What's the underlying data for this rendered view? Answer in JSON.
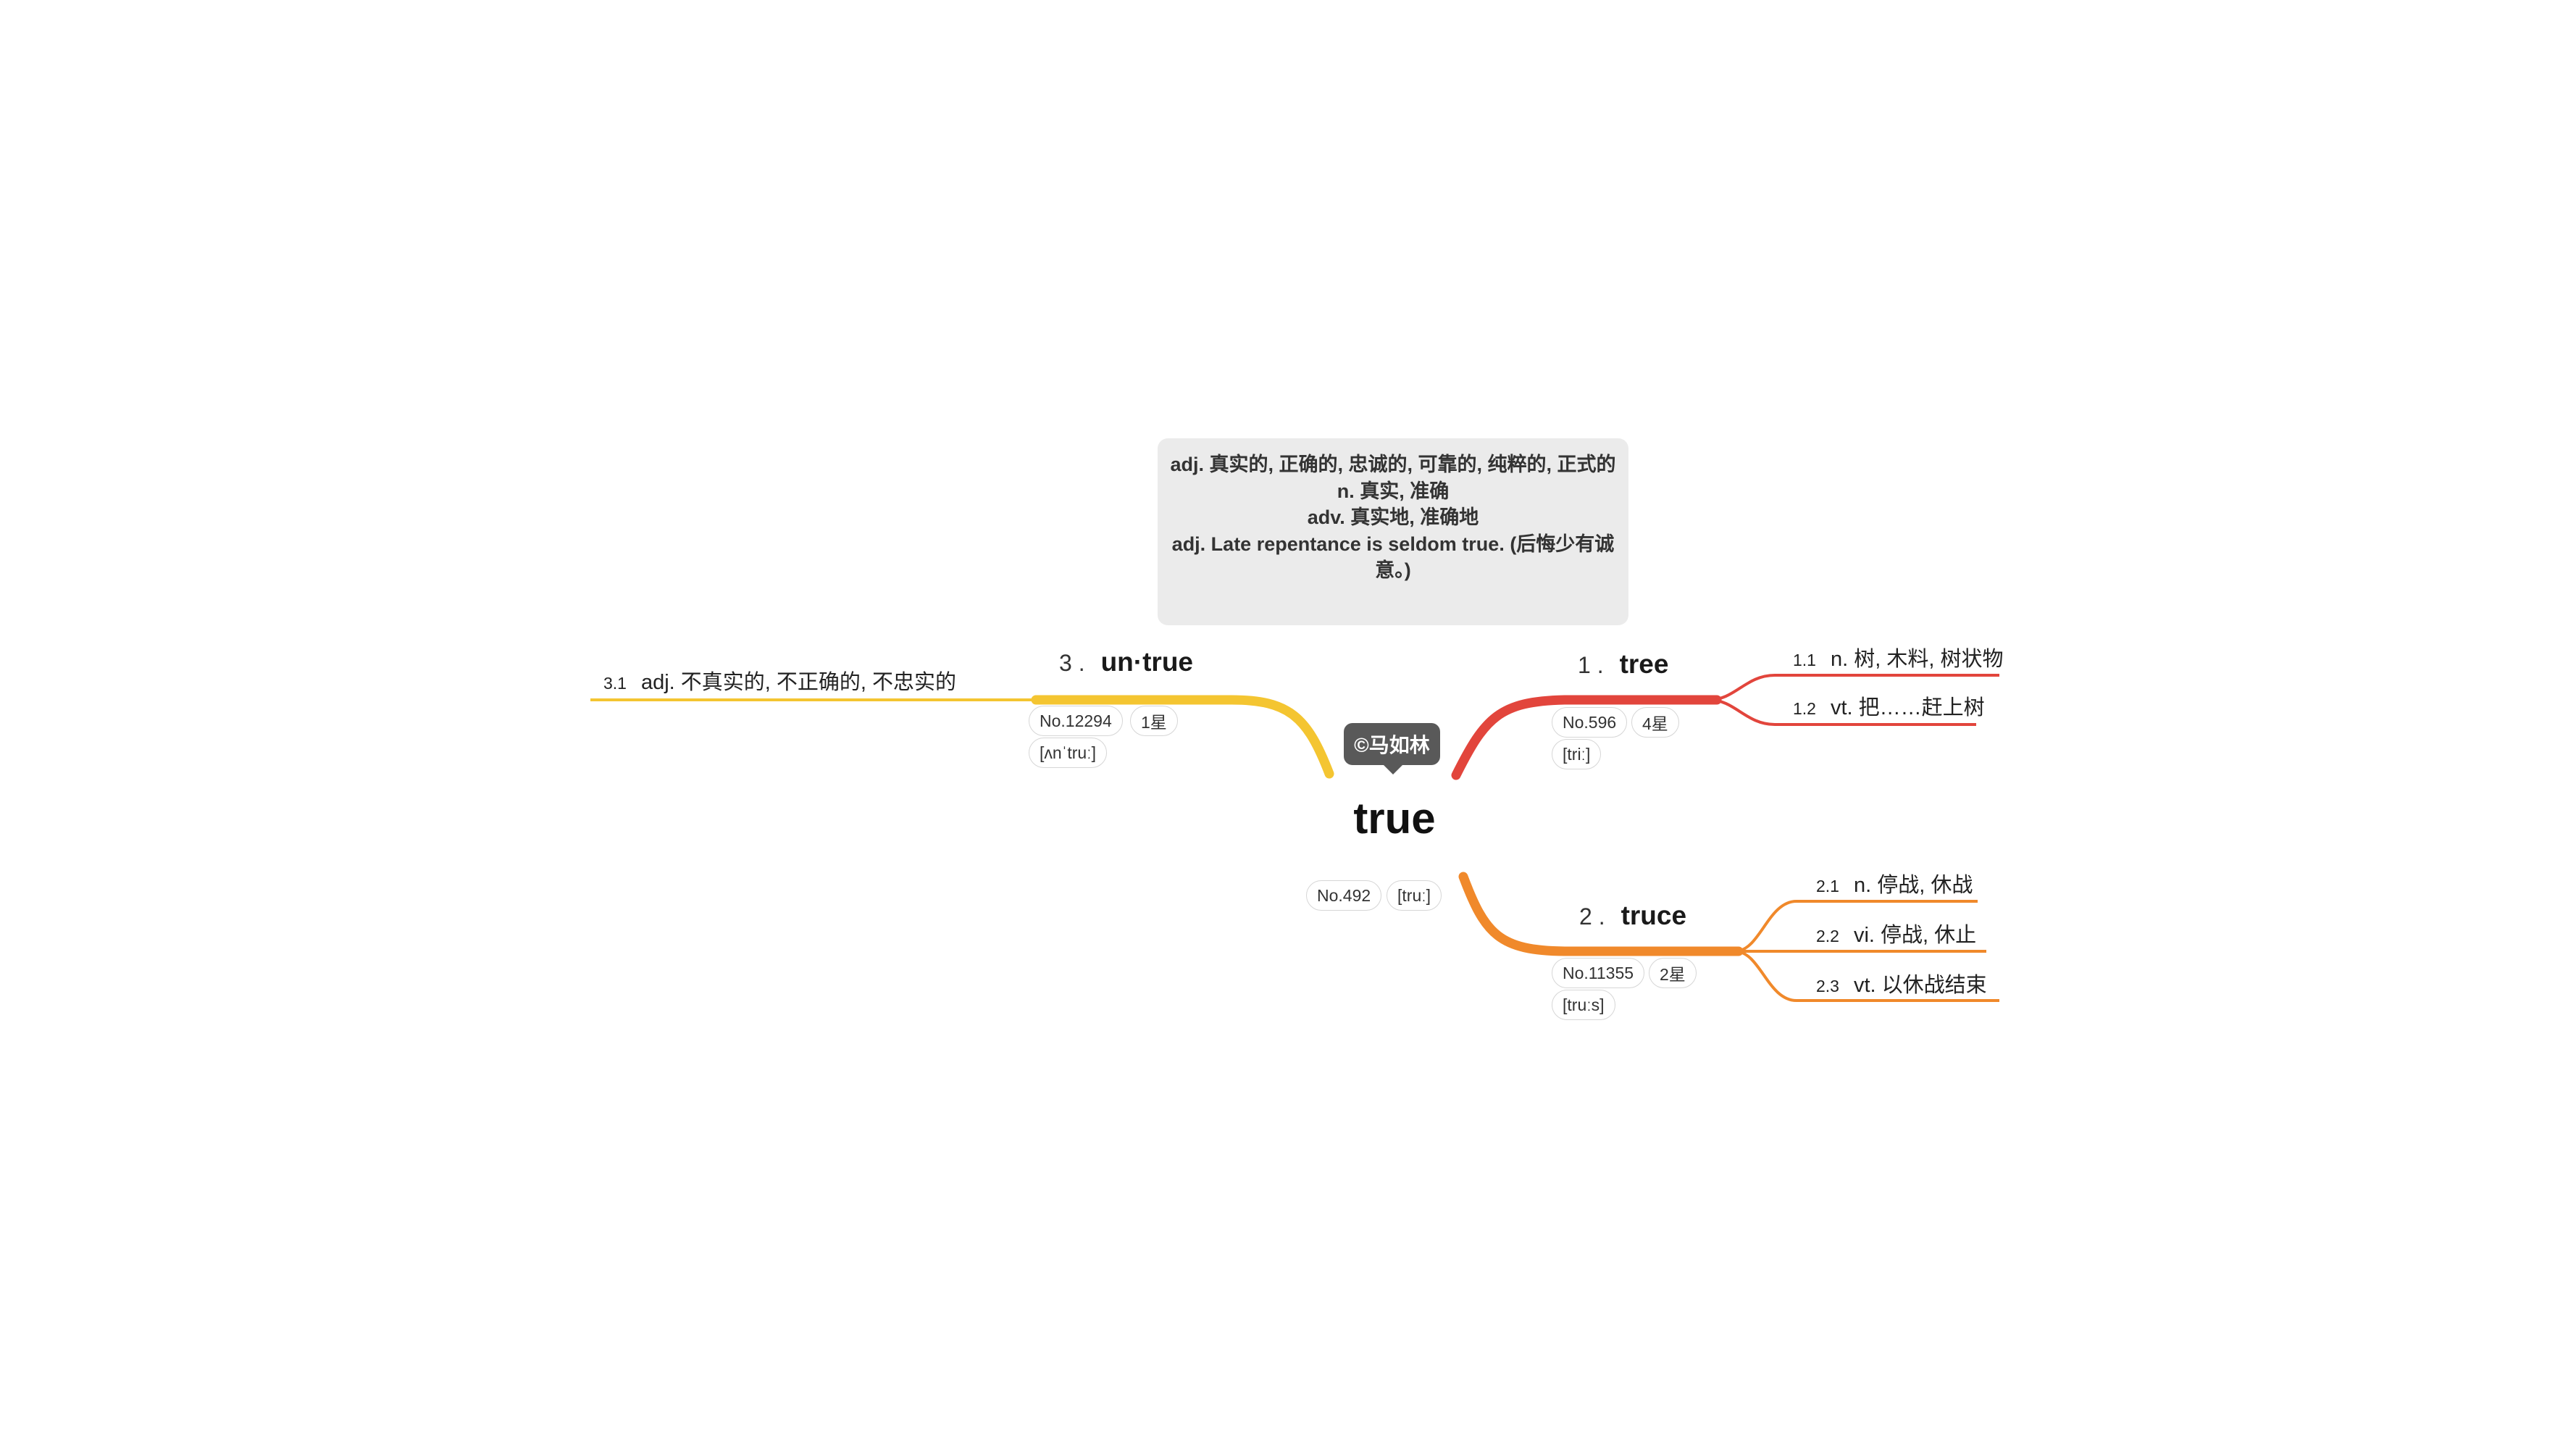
{
  "note": {
    "lines": [
      "adj. 真实的, 正确的, 忠诚的, 可靠的, 纯粹的, 正式的",
      "n. 真实, 准确",
      "adv. 真实地, 准确地",
      "adj. Late repentance is seldom true. (后悔少有诚意。)"
    ]
  },
  "credit": "©马如林",
  "central": {
    "word": "true",
    "no": "No.492",
    "phonetic": "[truː]"
  },
  "branches": [
    {
      "num": "1 .",
      "word": "tree",
      "no": "No.596",
      "stars": "4星",
      "phonetic": "[triː]",
      "color": "#e2453c",
      "defs": [
        {
          "num": "1.1",
          "text": "n. 树, 木料, 树状物"
        },
        {
          "num": "1.2",
          "text": "vt. 把……赶上树"
        }
      ]
    },
    {
      "num": "2 .",
      "word": "truce",
      "no": "No.11355",
      "stars": "2星",
      "phonetic": "[truːs]",
      "color": "#f0892b",
      "defs": [
        {
          "num": "2.1",
          "text": "n. 停战, 休战"
        },
        {
          "num": "2.2",
          "text": "vi. 停战, 休止"
        },
        {
          "num": "2.3",
          "text": "vt. 以休战结束"
        }
      ]
    },
    {
      "num": "3 .",
      "word": "un·true",
      "no": "No.12294",
      "stars": "1星",
      "phonetic": "[ʌnˈtruː]",
      "color": "#f4c531",
      "defs": [
        {
          "num": "3.1",
          "text": "adj. 不真实的, 不正确的, 不忠实的"
        }
      ]
    }
  ]
}
